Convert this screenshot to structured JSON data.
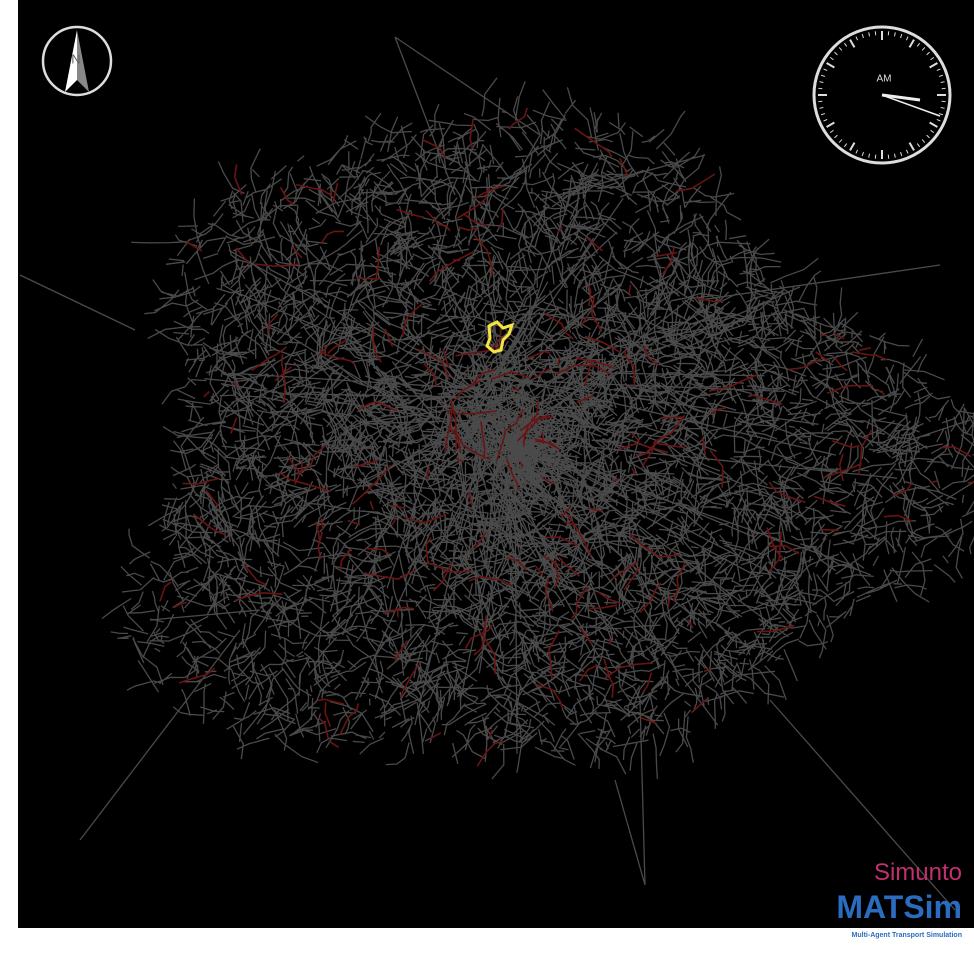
{
  "compass": {
    "label": "N"
  },
  "clock": {
    "label": "AM"
  },
  "logo": {
    "brand": "Simunto",
    "product": "MATSim",
    "tagline": "Multi-Agent Transport Simulation"
  }
}
